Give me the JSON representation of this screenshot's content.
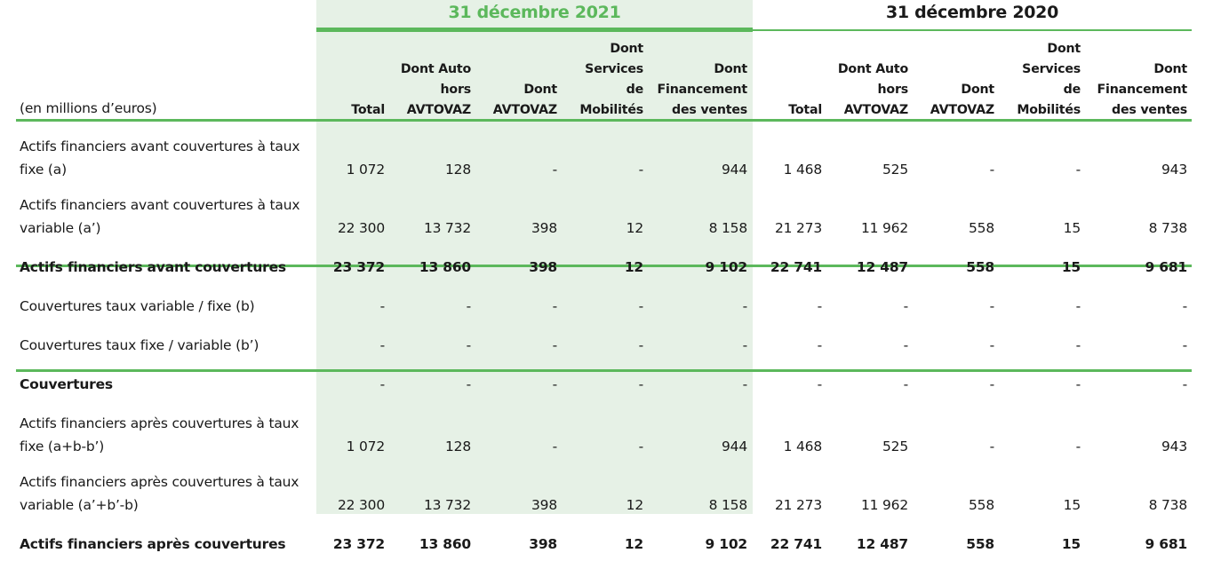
{
  "periods": {
    "p2021": "31 décembre 2021",
    "p2020": "31 décembre 2020"
  },
  "unit_label": "(en millions d’euros)",
  "columns": [
    "Total",
    "Dont Auto hors AVTOVAZ",
    "Dont AVTOVAZ",
    "Dont Services de Mobilités",
    "Dont Financement des ventes",
    "Total",
    "Dont Auto hors AVTOVAZ",
    "Dont AVTOVAZ",
    "Dont Services de Mobilités",
    "Dont Financement des ventes"
  ],
  "rows": [
    {
      "label": "Actifs financiers avant couvertures à taux fixe (a)",
      "values": [
        "1 072",
        "128",
        "-",
        "-",
        "944",
        "1 468",
        "525",
        "-",
        "-",
        "943"
      ]
    },
    {
      "label": "Actifs financiers avant couvertures à taux variable (a’)",
      "values": [
        "22 300",
        "13 732",
        "398",
        "12",
        "8 158",
        "21 273",
        "11 962",
        "558",
        "15",
        "8 738"
      ]
    },
    {
      "label": "Actifs financiers avant couvertures",
      "values": [
        "23 372",
        "13 860",
        "398",
        "12",
        "9 102",
        "22 741",
        "12 487",
        "558",
        "15",
        "9 681"
      ]
    },
    {
      "label": "Couvertures taux variable / fixe (b)",
      "values": [
        "-",
        "-",
        "-",
        "-",
        "-",
        "-",
        "-",
        "-",
        "-",
        "-"
      ]
    },
    {
      "label": "Couvertures taux fixe / variable (b’)",
      "values": [
        "-",
        "-",
        "-",
        "-",
        "-",
        "-",
        "-",
        "-",
        "-",
        "-"
      ]
    },
    {
      "label": "Couvertures",
      "values": [
        "-",
        "-",
        "-",
        "-",
        "-",
        "-",
        "-",
        "-",
        "-",
        "-"
      ]
    },
    {
      "label": "Actifs financiers après couvertures à taux fixe (a+b-b’)",
      "values": [
        "1 072",
        "128",
        "-",
        "-",
        "944",
        "1 468",
        "525",
        "-",
        "-",
        "943"
      ]
    },
    {
      "label": "Actifs financiers après couvertures à taux variable (a’+b’-b)",
      "values": [
        "22 300",
        "13 732",
        "398",
        "12",
        "8 158",
        "21 273",
        "11 962",
        "558",
        "15",
        "8 738"
      ]
    },
    {
      "label": "Actifs financiers après couvertures",
      "values": [
        "23 372",
        "13 860",
        "398",
        "12",
        "9 102",
        "22 741",
        "12 487",
        "558",
        "15",
        "9 681"
      ]
    }
  ]
}
